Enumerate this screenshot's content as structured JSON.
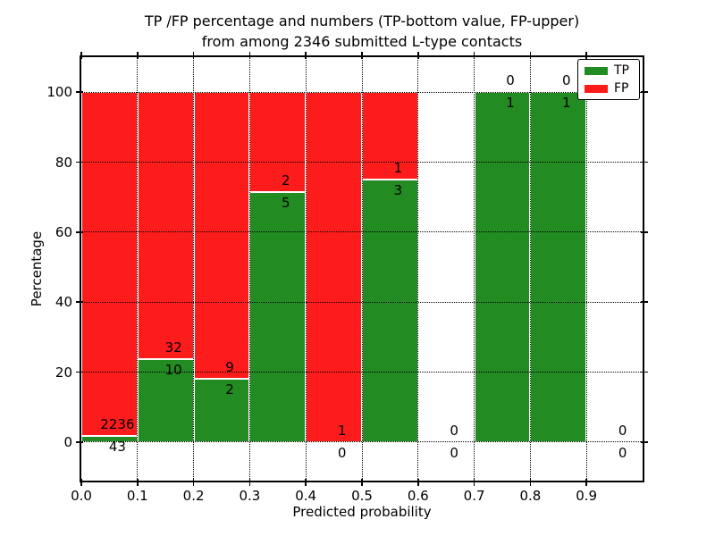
{
  "title": {
    "line1": "TP /FP percentage and numbers (TP-bottom value, FP-upper)",
    "line2": "from among 2346 submitted L-type contacts"
  },
  "axes": {
    "xlabel": "Predicted probability",
    "ylabel": "Percentage"
  },
  "legend": {
    "tp_label": "TP",
    "fp_label": "FP"
  },
  "colors": {
    "tp": "#228b22",
    "fp": "#fc1c1c",
    "grid": "#000000"
  },
  "chart_data": {
    "type": "bar",
    "stacked": true,
    "title": "TP /FP percentage and numbers (TP-bottom value, FP-upper) from among 2346 submitted L-type contacts",
    "xlabel": "Predicted probability",
    "ylabel": "Percentage",
    "xlim": [
      0.0,
      1.0
    ],
    "ylim": [
      -11,
      110
    ],
    "grid": true,
    "legend_position": "upper right",
    "xticks": [
      "0.0",
      "0.1",
      "0.2",
      "0.3",
      "0.4",
      "0.5",
      "0.6",
      "0.7",
      "0.8",
      "0.9"
    ],
    "xtick_values": [
      0.0,
      0.1,
      0.2,
      0.3,
      0.4,
      0.5,
      0.6,
      0.7,
      0.8,
      0.9
    ],
    "yticks": [
      "0",
      "20",
      "40",
      "60",
      "80",
      "100"
    ],
    "ytick_values": [
      0,
      20,
      40,
      60,
      80,
      100
    ],
    "total_contacts": 2346,
    "series": [
      {
        "name": "TP",
        "color": "#228b22",
        "counts": [
          43,
          10,
          2,
          5,
          0,
          3,
          0,
          1,
          1,
          0
        ]
      },
      {
        "name": "FP",
        "color": "#fc1c1c",
        "counts": [
          2236,
          32,
          9,
          2,
          1,
          1,
          0,
          0,
          0,
          0
        ]
      }
    ],
    "bins": [
      {
        "x0": 0.0,
        "x1": 0.1,
        "tp_count": 43,
        "fp_count": 2236,
        "tp_pct": 1.89,
        "has_bar": true
      },
      {
        "x0": 0.1,
        "x1": 0.2,
        "tp_count": 10,
        "fp_count": 32,
        "tp_pct": 23.81,
        "has_bar": true
      },
      {
        "x0": 0.2,
        "x1": 0.3,
        "tp_count": 2,
        "fp_count": 9,
        "tp_pct": 18.18,
        "has_bar": true
      },
      {
        "x0": 0.3,
        "x1": 0.4,
        "tp_count": 5,
        "fp_count": 2,
        "tp_pct": 71.43,
        "has_bar": true
      },
      {
        "x0": 0.4,
        "x1": 0.5,
        "tp_count": 0,
        "fp_count": 1,
        "tp_pct": 0.0,
        "has_bar": true
      },
      {
        "x0": 0.5,
        "x1": 0.6,
        "tp_count": 3,
        "fp_count": 1,
        "tp_pct": 75.0,
        "has_bar": true
      },
      {
        "x0": 0.6,
        "x1": 0.7,
        "tp_count": 0,
        "fp_count": 0,
        "tp_pct": 0.0,
        "has_bar": false
      },
      {
        "x0": 0.7,
        "x1": 0.8,
        "tp_count": 1,
        "fp_count": 0,
        "tp_pct": 100.0,
        "has_bar": true
      },
      {
        "x0": 0.8,
        "x1": 0.9,
        "tp_count": 1,
        "fp_count": 0,
        "tp_pct": 100.0,
        "has_bar": true
      },
      {
        "x0": 0.9,
        "x1": 1.0,
        "tp_count": 0,
        "fp_count": 0,
        "tp_pct": 0.0,
        "has_bar": false
      }
    ]
  }
}
